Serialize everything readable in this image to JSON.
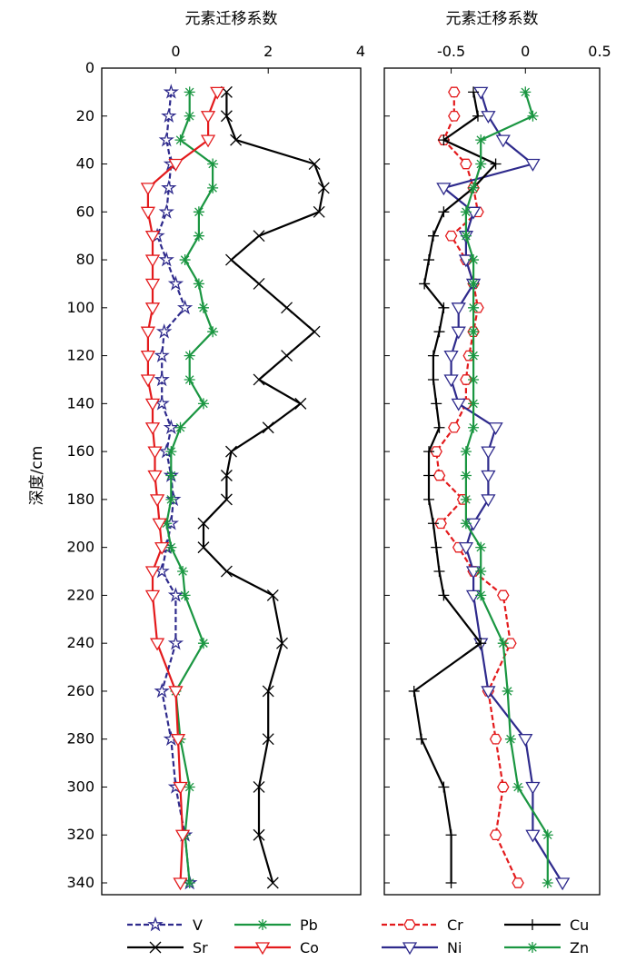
{
  "chart_data": [
    {
      "type": "line",
      "orientation": "depth-profile",
      "title": "",
      "xlabel": "元素迁移系数",
      "ylabel": "深度/cm",
      "xlim": [
        -1.6,
        4
      ],
      "ylim": [
        0,
        345
      ],
      "y_reversed": true,
      "xticks": [
        "0",
        "2",
        "4"
      ],
      "xtick_values": [
        0,
        2,
        4
      ],
      "yticks": [
        "0",
        "20",
        "40",
        "60",
        "80",
        "100",
        "120",
        "140",
        "160",
        "180",
        "200",
        "220",
        "240",
        "260",
        "280",
        "300",
        "320",
        "340"
      ],
      "ytick_values": [
        0,
        20,
        40,
        60,
        80,
        100,
        120,
        140,
        160,
        180,
        200,
        220,
        240,
        260,
        280,
        300,
        320,
        340
      ],
      "series": [
        {
          "name": "V",
          "color": "#2e2a8c",
          "marker": "star",
          "dash": "6,3",
          "depth": [
            10,
            20,
            30,
            40,
            50,
            60,
            70,
            80,
            90,
            100,
            110,
            120,
            130,
            140,
            150,
            160,
            170,
            180,
            190,
            200,
            210,
            220,
            240,
            260,
            280,
            300,
            320,
            340
          ],
          "values": [
            -0.1,
            -0.15,
            -0.2,
            -0.1,
            -0.15,
            -0.2,
            -0.4,
            -0.2,
            0.0,
            0.2,
            -0.25,
            -0.3,
            -0.3,
            -0.3,
            -0.1,
            -0.2,
            -0.1,
            -0.05,
            -0.1,
            -0.2,
            -0.3,
            0.0,
            0.0,
            -0.3,
            -0.1,
            0.0,
            0.2,
            0.3
          ]
        },
        {
          "name": "Sr",
          "color": "#000000",
          "marker": "x",
          "dash": "",
          "depth": [
            10,
            20,
            30,
            40,
            50,
            60,
            70,
            80,
            90,
            100,
            110,
            120,
            130,
            140,
            150,
            160,
            170,
            180,
            190,
            200,
            210,
            220,
            240,
            260,
            280,
            300,
            320,
            340
          ],
          "values": [
            1.1,
            1.1,
            1.3,
            3.0,
            3.2,
            3.1,
            1.8,
            1.2,
            1.8,
            2.4,
            3.0,
            2.4,
            1.8,
            2.7,
            2.0,
            1.2,
            1.1,
            1.1,
            0.6,
            0.6,
            1.1,
            2.1,
            2.3,
            2.0,
            2.0,
            1.8,
            1.8,
            2.1
          ]
        },
        {
          "name": "Pb",
          "color": "#1a9641",
          "marker": "asterisk",
          "dash": "",
          "depth": [
            10,
            20,
            30,
            40,
            50,
            60,
            70,
            80,
            90,
            100,
            110,
            120,
            130,
            140,
            150,
            160,
            170,
            180,
            190,
            200,
            210,
            220,
            240,
            260,
            280,
            300,
            320,
            340
          ],
          "values": [
            0.3,
            0.3,
            0.1,
            0.8,
            0.8,
            0.5,
            0.5,
            0.2,
            0.5,
            0.6,
            0.8,
            0.3,
            0.3,
            0.6,
            0.1,
            -0.1,
            -0.1,
            -0.1,
            -0.2,
            -0.1,
            0.15,
            0.2,
            0.6,
            0.0,
            0.1,
            0.3,
            0.2,
            0.3
          ]
        },
        {
          "name": "Co",
          "color": "#e31a1c",
          "marker": "triangle-down",
          "dash": "",
          "depth": [
            10,
            20,
            30,
            40,
            50,
            60,
            70,
            80,
            90,
            100,
            110,
            120,
            130,
            140,
            150,
            160,
            170,
            180,
            190,
            200,
            210,
            220,
            240,
            260,
            280,
            300,
            320,
            340
          ],
          "values": [
            0.9,
            0.7,
            0.7,
            0.0,
            -0.6,
            -0.6,
            -0.5,
            -0.5,
            -0.5,
            -0.5,
            -0.6,
            -0.6,
            -0.6,
            -0.5,
            -0.5,
            -0.45,
            -0.45,
            -0.4,
            -0.35,
            -0.3,
            -0.5,
            -0.5,
            -0.4,
            0.0,
            0.05,
            0.1,
            0.15,
            0.1
          ]
        }
      ],
      "legend": [
        {
          "name": "V"
        },
        {
          "name": "Pb"
        },
        {
          "name": "Sr"
        },
        {
          "name": "Co"
        }
      ],
      "grid": false,
      "legend_position": "bottom"
    },
    {
      "type": "line",
      "orientation": "depth-profile",
      "title": "",
      "xlabel": "元素迁移系数",
      "ylabel": "",
      "xlim": [
        -0.95,
        0.5
      ],
      "ylim": [
        0,
        345
      ],
      "y_reversed": true,
      "xticks": [
        "-0.5",
        "0",
        "0.5"
      ],
      "xtick_values": [
        -0.5,
        0,
        0.5
      ],
      "yticks": [],
      "ytick_values": [],
      "series": [
        {
          "name": "Cr",
          "color": "#e31a1c",
          "marker": "hexagon",
          "dash": "6,3",
          "depth": [
            10,
            20,
            30,
            40,
            50,
            60,
            70,
            80,
            90,
            100,
            110,
            120,
            130,
            140,
            150,
            160,
            170,
            180,
            190,
            200,
            210,
            220,
            240,
            260,
            280,
            300,
            320,
            340
          ],
          "values": [
            -0.48,
            -0.48,
            -0.55,
            -0.4,
            -0.35,
            -0.32,
            -0.5,
            -0.4,
            -0.35,
            -0.32,
            -0.35,
            -0.38,
            -0.4,
            -0.4,
            -0.48,
            -0.6,
            -0.58,
            -0.42,
            -0.57,
            -0.45,
            -0.35,
            -0.15,
            -0.1,
            -0.25,
            -0.2,
            -0.15,
            -0.2,
            -0.05
          ]
        },
        {
          "name": "Ni",
          "color": "#2e2a8c",
          "marker": "triangle-down",
          "dash": "",
          "depth": [
            10,
            20,
            30,
            40,
            50,
            60,
            70,
            80,
            90,
            100,
            110,
            120,
            130,
            140,
            150,
            160,
            170,
            180,
            190,
            200,
            210,
            220,
            240,
            260,
            280,
            300,
            320,
            340
          ],
          "values": [
            -0.3,
            -0.25,
            -0.15,
            0.05,
            -0.55,
            -0.35,
            -0.4,
            -0.4,
            -0.35,
            -0.45,
            -0.45,
            -0.5,
            -0.5,
            -0.45,
            -0.2,
            -0.25,
            -0.25,
            -0.25,
            -0.35,
            -0.4,
            -0.35,
            -0.35,
            -0.3,
            -0.25,
            0.0,
            0.05,
            0.05,
            0.25
          ]
        },
        {
          "name": "Cu",
          "color": "#000000",
          "marker": "plus",
          "dash": "",
          "depth": [
            10,
            20,
            30,
            40,
            50,
            60,
            70,
            80,
            90,
            100,
            110,
            120,
            130,
            140,
            150,
            160,
            170,
            180,
            190,
            200,
            210,
            220,
            240,
            260,
            280,
            300,
            320,
            340
          ],
          "values": [
            -0.35,
            -0.32,
            -0.55,
            -0.2,
            -0.35,
            -0.55,
            -0.62,
            -0.65,
            -0.68,
            -0.55,
            -0.58,
            -0.62,
            -0.62,
            -0.6,
            -0.58,
            -0.65,
            -0.65,
            -0.65,
            -0.62,
            -0.6,
            -0.58,
            -0.55,
            -0.3,
            -0.75,
            -0.7,
            -0.55,
            -0.5,
            -0.5
          ]
        },
        {
          "name": "Zn",
          "color": "#1a9641",
          "marker": "asterisk",
          "dash": "",
          "depth": [
            10,
            20,
            30,
            40,
            50,
            60,
            70,
            80,
            90,
            100,
            110,
            120,
            130,
            140,
            150,
            160,
            170,
            180,
            190,
            200,
            210,
            220,
            240,
            260,
            280,
            300,
            320,
            340
          ],
          "values": [
            0.0,
            0.05,
            -0.3,
            -0.3,
            -0.35,
            -0.4,
            -0.4,
            -0.35,
            -0.35,
            -0.35,
            -0.35,
            -0.35,
            -0.35,
            -0.35,
            -0.35,
            -0.4,
            -0.4,
            -0.4,
            -0.4,
            -0.3,
            -0.3,
            -0.3,
            -0.15,
            -0.12,
            -0.1,
            -0.05,
            0.15,
            0.15
          ]
        }
      ],
      "legend": [
        {
          "name": "Cr"
        },
        {
          "name": "Cu"
        },
        {
          "name": "Ni"
        },
        {
          "name": "Zn"
        }
      ],
      "grid": false,
      "legend_position": "bottom"
    }
  ]
}
